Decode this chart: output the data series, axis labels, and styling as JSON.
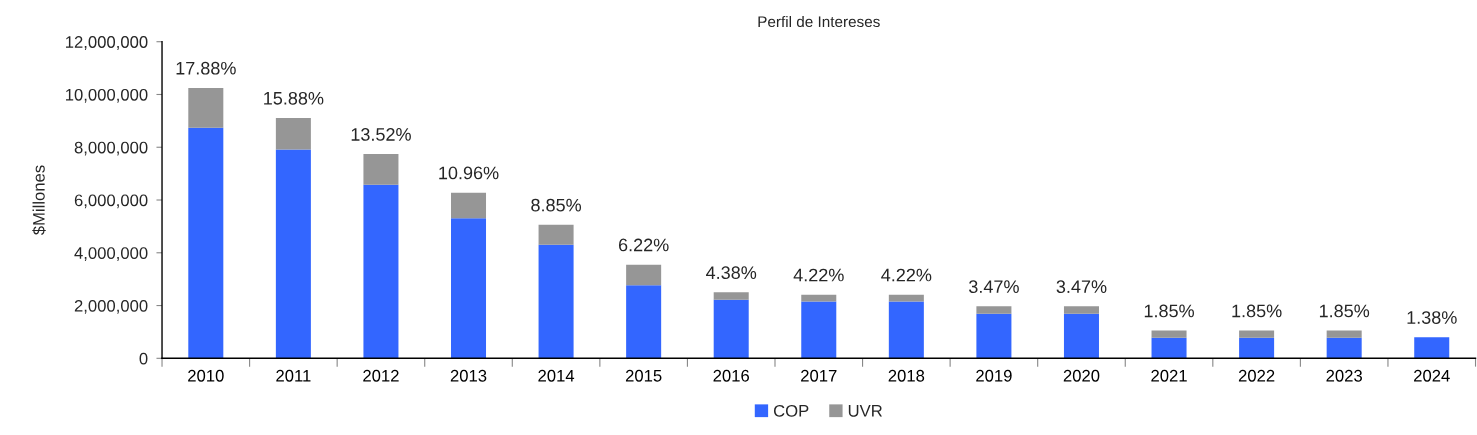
{
  "chart_data": {
    "type": "bar",
    "title": "Perfil de Intereses",
    "ylabel": "$Millones",
    "stacked": true,
    "legend": "bottom",
    "grid": false,
    "categories": [
      "2010",
      "2011",
      "2012",
      "2013",
      "2014",
      "2015",
      "2016",
      "2017",
      "2018",
      "2019",
      "2020",
      "2021",
      "2022",
      "2023",
      "2024"
    ],
    "series": [
      {
        "name": "COP",
        "color": "#3366ff",
        "values": [
          8740000,
          7910000,
          6580000,
          5310000,
          4300000,
          2770000,
          2220000,
          2150000,
          2150000,
          1690000,
          1690000,
          780000,
          780000,
          780000,
          800000
        ]
      },
      {
        "name": "UVR",
        "color": "#969696",
        "values": [
          1510000,
          1200000,
          1160000,
          970000,
          760000,
          780000,
          280000,
          260000,
          260000,
          280000,
          280000,
          270000,
          270000,
          270000,
          0
        ]
      }
    ],
    "ylim": [
      0,
      12000000
    ],
    "yticks": [
      0,
      {
        "value": 2000000,
        "label": "2,000,000"
      },
      {
        "value": 4000000,
        "label": "4,000,000"
      },
      {
        "value": 6000000,
        "label": "6,000,000"
      },
      {
        "value": 8000000,
        "label": "8,000,000"
      },
      {
        "value": 10000000,
        "label": "10,000,000"
      },
      {
        "value": 12000000,
        "label": "12,000,000"
      }
    ],
    "annotations": [
      {
        "text": "17.88%",
        "x": "2010",
        "y": 10250000
      },
      {
        "text": "15.88%",
        "x": "2011",
        "y": 9110000
      },
      {
        "text": "13.52%",
        "x": "2012",
        "y": 7740000
      },
      {
        "text": "10.96%",
        "x": "2013",
        "y": 6280000
      },
      {
        "text": "8.85%",
        "x": "2014",
        "y": 5060000
      },
      {
        "text": "6.22%",
        "x": "2015",
        "y": 3550000
      },
      {
        "text": "4.38%",
        "x": "2016",
        "y": 2500000
      },
      {
        "text": "4.22%",
        "x": "2017",
        "y": 2410000
      },
      {
        "text": "4.22%",
        "x": "2018",
        "y": 2410000
      },
      {
        "text": "3.47%",
        "x": "2019",
        "y": 1970000
      },
      {
        "text": "3.47%",
        "x": "2020",
        "y": 1970000
      },
      {
        "text": "1.85%",
        "x": "2021",
        "y": 1050000
      },
      {
        "text": "1.85%",
        "x": "2022",
        "y": 1050000
      },
      {
        "text": "1.85%",
        "x": "2023",
        "y": 1050000
      },
      {
        "text": "1.38%",
        "x": "2024",
        "y": 800000
      }
    ]
  }
}
